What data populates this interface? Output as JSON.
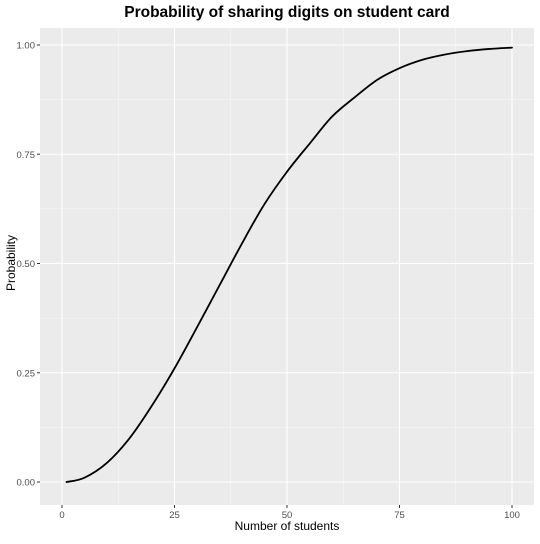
{
  "chart_data": {
    "type": "line",
    "title": "Probability of sharing digits on student card",
    "xlabel": "Number of students",
    "ylabel": "Probability",
    "xlim": [
      1,
      100
    ],
    "ylim": [
      0,
      1
    ],
    "x_ticks": [
      0,
      25,
      50,
      75,
      100
    ],
    "x_tick_labels": [
      "0",
      "25",
      "50",
      "75",
      "100"
    ],
    "y_ticks": [
      0,
      0.25,
      0.5,
      0.75,
      1
    ],
    "y_tick_labels": [
      "0.00",
      "0.25",
      "0.50",
      "0.75",
      "1.00"
    ],
    "grid": true,
    "legend": "none",
    "colors": {
      "panel_background": "#ebebeb",
      "grid_line": "#ffffff",
      "series_line": "#000000",
      "tick_label": "#4d4d4d",
      "tick_mark": "#333333"
    },
    "series": [
      {
        "x": [
          1,
          5,
          10,
          15,
          20,
          25,
          30,
          35,
          40,
          45,
          50,
          55,
          60,
          65,
          70,
          75,
          80,
          85,
          90,
          95,
          100
        ],
        "values": [
          0.0,
          0.01,
          0.044,
          0.1,
          0.175,
          0.26,
          0.354,
          0.45,
          0.546,
          0.636,
          0.71,
          0.774,
          0.836,
          0.88,
          0.92,
          0.947,
          0.966,
          0.978,
          0.986,
          0.991,
          0.994
        ]
      }
    ]
  }
}
